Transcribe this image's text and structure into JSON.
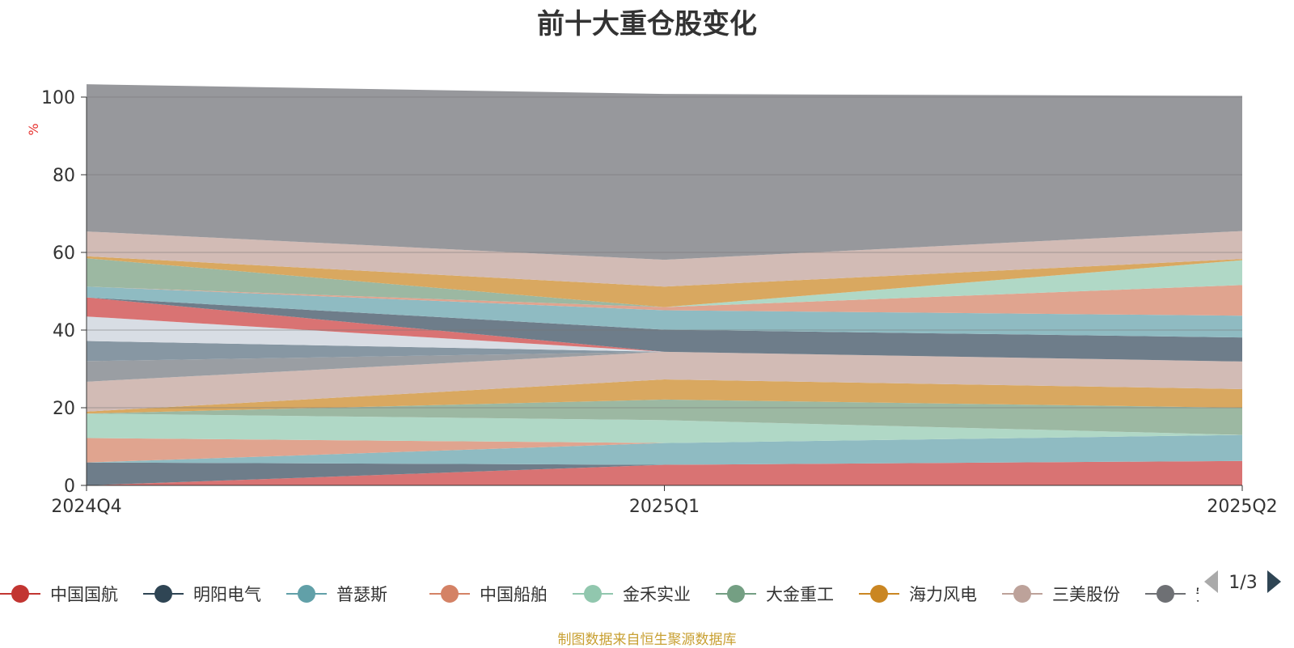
{
  "chart_data": {
    "type": "area",
    "title": "前十大重仓股变化",
    "ylabel": "%",
    "ylim": [
      0,
      100
    ],
    "y_ticks": [
      0,
      20,
      40,
      60,
      80,
      100
    ],
    "categories": [
      "2024Q4",
      "2025Q1",
      "2025Q2"
    ],
    "grid": true,
    "legend_position": "bottom",
    "legend_page": "1/3",
    "source_note": "制图数据来自恒生聚源数据库",
    "series": [
      {
        "name": "中国国航",
        "color": "#d97373",
        "values": [
          0.0,
          5.3,
          6.3
        ]
      },
      {
        "name": "明阳电气",
        "color": "#6e7d8a",
        "values": [
          5.9,
          0.0,
          0.0
        ]
      },
      {
        "name": "普瑟斯",
        "color": "#8fbbc2",
        "values": [
          0.0,
          5.6,
          6.7
        ]
      },
      {
        "name": "中国船舶",
        "color": "#e0a48f",
        "values": [
          6.3,
          0.0,
          0.0
        ]
      },
      {
        "name": "金禾实业",
        "color": "#b0d8c6",
        "values": [
          6.3,
          5.9,
          0.0
        ]
      },
      {
        "name": "大金重工",
        "color": "#9cb8a2",
        "values": [
          0.0,
          5.3,
          7.0
        ]
      },
      {
        "name": "海力风电",
        "color": "#d9a860",
        "values": [
          0.5,
          5.2,
          4.8
        ]
      },
      {
        "name": "三美股份",
        "color": "#d2bbb5",
        "values": [
          7.7,
          7.1,
          7.1
        ]
      },
      {
        "name": "安琪酵母",
        "color": "#9a9ea3",
        "values": [
          5.3,
          0.0,
          0.0
        ]
      },
      {
        "name": "",
        "color": "#8797a3",
        "values": [
          5.2,
          0.0,
          0.0
        ]
      },
      {
        "name": "",
        "color": "#d8dde4",
        "values": [
          6.3,
          0.0,
          0.0
        ]
      },
      {
        "name": "",
        "color": "#d97373",
        "values": [
          4.9,
          0.0,
          0.0
        ]
      },
      {
        "name": "",
        "color": "#6e7d8a",
        "values": [
          0.0,
          5.7,
          6.2
        ]
      },
      {
        "name": "",
        "color": "#8fbbc2",
        "values": [
          2.8,
          5.0,
          5.6
        ]
      },
      {
        "name": "",
        "color": "#e0a48f",
        "values": [
          0.0,
          0.8,
          7.9
        ]
      },
      {
        "name": "",
        "color": "#b0d8c6",
        "values": [
          0.0,
          0.0,
          6.4
        ]
      },
      {
        "name": "",
        "color": "#9cb8a2",
        "values": [
          7.3,
          0.0,
          0.0
        ]
      },
      {
        "name": "",
        "color": "#d9a860",
        "values": [
          0.5,
          5.3,
          0.3
        ]
      },
      {
        "name": "",
        "color": "#d2bbb5",
        "values": [
          6.4,
          6.9,
          7.2
        ]
      },
      {
        "name": "",
        "color": "#97989c",
        "values": [
          37.9,
          42.7,
          34.8
        ]
      }
    ],
    "legend": [
      {
        "name": "中国国航",
        "color": "#c23531"
      },
      {
        "name": "明阳电气",
        "color": "#2f4554"
      },
      {
        "name": "普瑟斯",
        "color": "#61a0a8"
      },
      {
        "name": "中国船舶",
        "color": "#d48265"
      },
      {
        "name": "金禾实业",
        "color": "#91c7ae"
      },
      {
        "name": "大金重工",
        "color": "#749f83"
      },
      {
        "name": "海力风电",
        "color": "#ca8622"
      },
      {
        "name": "三美股份",
        "color": "#bda29a"
      },
      {
        "name": "安琪",
        "color": "#6e7074"
      }
    ]
  }
}
